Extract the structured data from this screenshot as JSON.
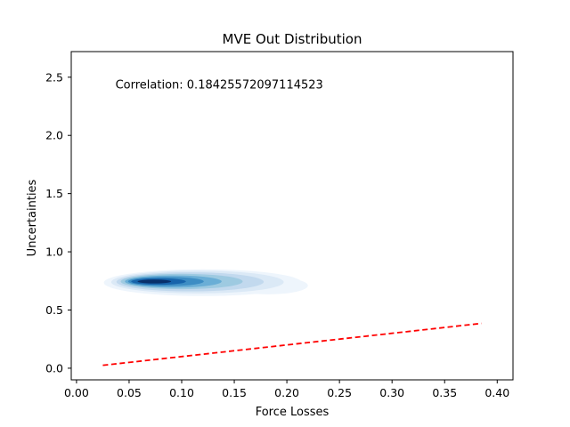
{
  "chart_data": {
    "type": "kde_density",
    "title": "MVE Out Distribution",
    "xlabel": "Force Losses",
    "ylabel": "Uncertainties",
    "xlim": [
      -0.005,
      0.415
    ],
    "ylim": [
      -0.1,
      2.72
    ],
    "xticks": [
      0.0,
      0.05,
      0.1,
      0.15,
      0.2,
      0.25,
      0.3,
      0.35,
      0.4
    ],
    "xtick_labels": [
      "0.00",
      "0.05",
      "0.10",
      "0.15",
      "0.20",
      "0.25",
      "0.30",
      "0.35",
      "0.40"
    ],
    "yticks": [
      0.0,
      0.5,
      1.0,
      1.5,
      2.0,
      2.5
    ],
    "ytick_labels": [
      "0.0",
      "0.5",
      "1.0",
      "1.5",
      "2.0",
      "2.5"
    ],
    "grid": false,
    "annotation": {
      "text": "Correlation: 0.18425572097114523",
      "x": 0.037,
      "y": 2.44
    },
    "density": {
      "colormap": "Blues",
      "levels": [
        {
          "cx": 0.12,
          "cy": 0.735,
          "rx": 0.094,
          "ry": 0.115
        },
        {
          "cx": 0.115,
          "cy": 0.74,
          "rx": 0.082,
          "ry": 0.098
        },
        {
          "cx": 0.108,
          "cy": 0.742,
          "rx": 0.07,
          "ry": 0.082
        },
        {
          "cx": 0.1,
          "cy": 0.745,
          "rx": 0.058,
          "ry": 0.066
        },
        {
          "cx": 0.092,
          "cy": 0.745,
          "rx": 0.046,
          "ry": 0.052
        },
        {
          "cx": 0.085,
          "cy": 0.745,
          "rx": 0.036,
          "ry": 0.04
        },
        {
          "cx": 0.078,
          "cy": 0.745,
          "rx": 0.026,
          "ry": 0.028
        },
        {
          "cx": 0.074,
          "cy": 0.745,
          "rx": 0.016,
          "ry": 0.017
        }
      ],
      "tail": {
        "cx": 0.182,
        "cy": 0.71,
        "rx": 0.038,
        "ry": 0.075
      }
    },
    "series": [
      {
        "type": "dashed_line",
        "color": "#ff0000",
        "x": [
          0.025,
          0.385
        ],
        "y": [
          0.025,
          0.385
        ]
      }
    ]
  }
}
